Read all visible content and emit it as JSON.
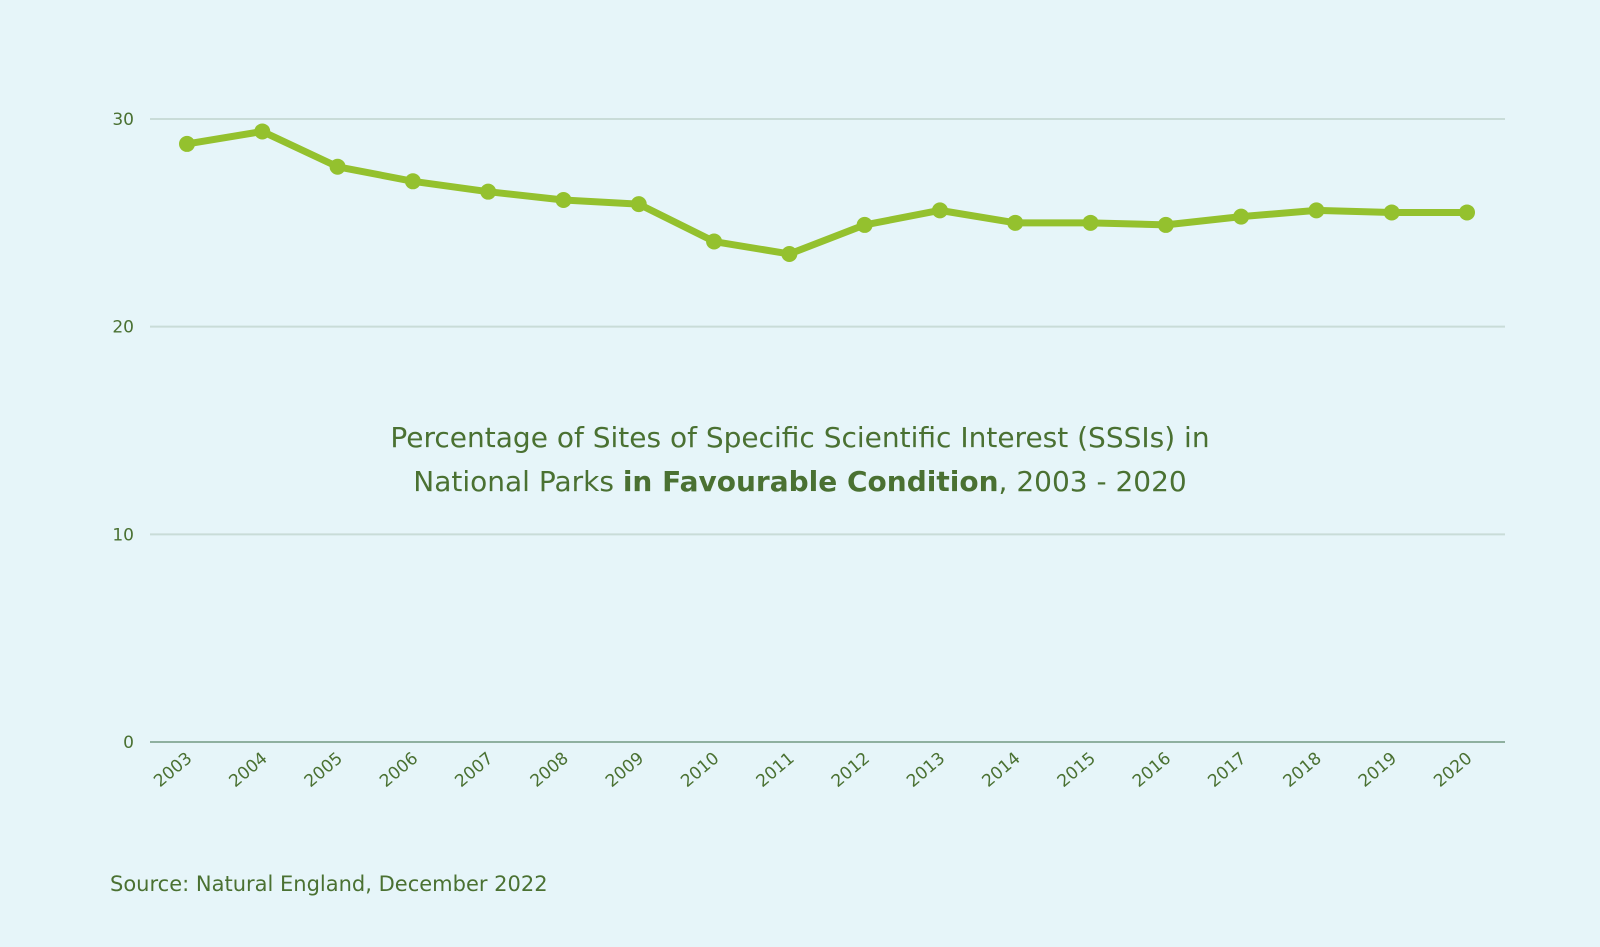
{
  "colors": {
    "background": "#e6f5f9",
    "series": "#94c12e",
    "text": "#4a7132",
    "grid": "#c9dcd8",
    "axis": "#8fb0a0"
  },
  "chart_data": {
    "type": "line",
    "title": {
      "line1": "Percentage of Sites of Specific Scientific Interest (SSSIs) in",
      "line2_prefix": "National Parks ",
      "line2_bold": "in Favourable Condition",
      "line2_suffix": ", 2003 - 2020"
    },
    "categories": [
      "2003",
      "2004",
      "2005",
      "2006",
      "2007",
      "2008",
      "2009",
      "2010",
      "2011",
      "2012",
      "2013",
      "2014",
      "2015",
      "2016",
      "2017",
      "2018",
      "2019",
      "2020"
    ],
    "values": [
      28.8,
      29.4,
      27.7,
      27.0,
      26.5,
      26.1,
      25.9,
      24.1,
      23.5,
      24.9,
      25.6,
      25.0,
      25.0,
      24.9,
      25.3,
      25.6,
      25.5,
      25.5
    ],
    "yticks": [
      0,
      10,
      20,
      30
    ],
    "ylim": [
      0,
      30
    ],
    "grid": true,
    "legend": "none"
  },
  "source": "Source: Natural England, December 2022"
}
